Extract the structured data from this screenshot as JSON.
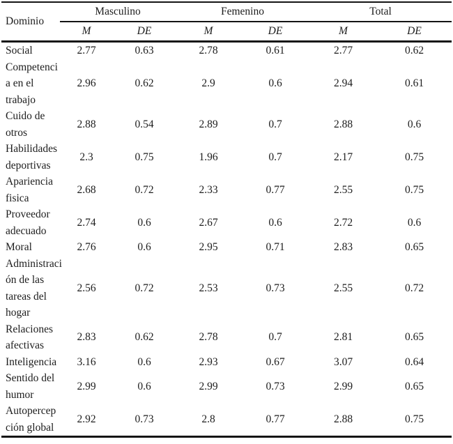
{
  "page": {
    "background_color": "#ffffff",
    "text_color": "#1d1d1d",
    "rule_color": "#141414"
  },
  "table": {
    "domain_header": "Dominio",
    "groups": [
      {
        "label": "Masculino",
        "sub": [
          "M",
          "DE"
        ]
      },
      {
        "label": "Femenino",
        "sub": [
          "M",
          "DE"
        ]
      },
      {
        "label": "Total",
        "sub": [
          "M",
          "DE"
        ]
      }
    ],
    "rows": [
      {
        "label": "Social",
        "values": [
          "2.77",
          "0.63",
          "2.78",
          "0.61",
          "2.77",
          "0.62"
        ]
      },
      {
        "label": "Competenci\na en el\ntrabajo",
        "values": [
          "2.96",
          "0.62",
          "2.9",
          "0.6",
          "2.94",
          "0.61"
        ]
      },
      {
        "label": "Cuido de\notros",
        "values": [
          "2.88",
          "0.54",
          "2.89",
          "0.7",
          "2.88",
          "0.6"
        ]
      },
      {
        "label": "Habilidades\ndeportivas",
        "values": [
          "2.3",
          "0.75",
          "1.96",
          "0.7",
          "2.17",
          "0.75"
        ]
      },
      {
        "label": "Apariencia\nfisica",
        "values": [
          "2.68",
          "0.72",
          "2.33",
          "0.77",
          "2.55",
          "0.75"
        ]
      },
      {
        "label": "Proveedor\nadecuado",
        "values": [
          "2.74",
          "0.6",
          "2.67",
          "0.6",
          "2.72",
          "0.6"
        ]
      },
      {
        "label": "Moral",
        "values": [
          "2.76",
          "0.6",
          "2.95",
          "0.71",
          "2.83",
          "0.65"
        ]
      },
      {
        "label": "Administraci\nón de las\ntareas del\nhogar",
        "values": [
          "2.56",
          "0.72",
          "2.53",
          "0.73",
          "2.55",
          "0.72"
        ]
      },
      {
        "label": "Relaciones\nafectivas",
        "values": [
          "2.83",
          "0.62",
          "2.78",
          "0.7",
          "2.81",
          "0.65"
        ]
      },
      {
        "label": "Inteligencia",
        "values": [
          "3.16",
          "0.6",
          "2.93",
          "0.67",
          "3.07",
          "0.64"
        ]
      },
      {
        "label": "Sentido del\nhumor",
        "values": [
          "2.99",
          "0.6",
          "2.99",
          "0.73",
          "2.99",
          "0.65"
        ]
      },
      {
        "label": "Autopercep\nción global",
        "values": [
          "2.92",
          "0.73",
          "2.8",
          "0.77",
          "2.88",
          "0.75"
        ]
      }
    ]
  }
}
